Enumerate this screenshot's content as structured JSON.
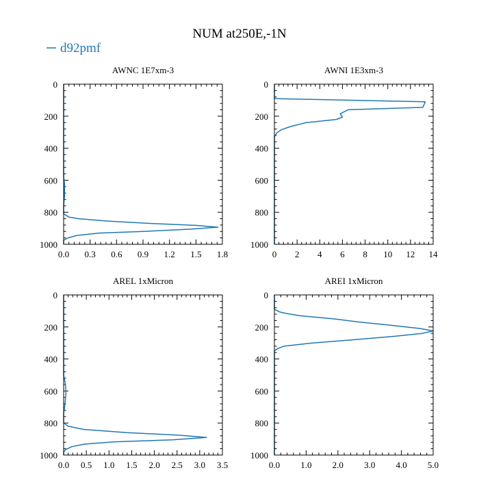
{
  "figure": {
    "title": "NUM at250E,-1N",
    "legend_label": "d92pmf",
    "line_color": "#1f77b4"
  },
  "chart_data": [
    {
      "type": "line",
      "title": "AWNC  1E7xm-3",
      "ylim": [
        1000,
        0
      ],
      "xlim": [
        0,
        1.8
      ],
      "yticks": [
        0,
        200,
        400,
        600,
        800,
        1000
      ],
      "xticks": [
        0.0,
        0.3,
        0.6,
        0.9,
        1.2,
        1.5,
        1.8
      ],
      "xtick_labels": [
        "0.0",
        "0.3",
        "0.6",
        "0.9",
        "1.2",
        "1.5",
        "1.8"
      ],
      "series": [
        {
          "name": "d92pmf",
          "x": [
            0,
            0,
            0.01,
            0.01,
            0,
            0,
            0.06,
            0.17,
            0.5,
            1.0,
            1.5,
            1.75,
            1.45,
            0.9,
            0.4,
            0.15,
            0.05,
            0,
            0
          ],
          "y": [
            0,
            580,
            620,
            700,
            760,
            810,
            830,
            840,
            855,
            870,
            882,
            893,
            905,
            920,
            930,
            945,
            960,
            975,
            1000
          ]
        }
      ]
    },
    {
      "type": "line",
      "title": "AWNI  1E3xm-3",
      "ylim": [
        1000,
        0
      ],
      "xlim": [
        0,
        14
      ],
      "yticks": [
        0,
        200,
        400,
        600,
        800,
        1000
      ],
      "xticks": [
        0,
        2,
        4,
        6,
        8,
        10,
        12,
        14
      ],
      "xtick_labels": [
        "0",
        "2",
        "4",
        "6",
        "8",
        "10",
        "12",
        "14"
      ],
      "series": [
        {
          "name": "d92pmf",
          "x": [
            0,
            0,
            13.3,
            13.1,
            6.5,
            5.8,
            6.0,
            5.5,
            2.8,
            1.4,
            0.6,
            0.2,
            0,
            0
          ],
          "y": [
            0,
            90,
            110,
            145,
            160,
            185,
            205,
            220,
            240,
            265,
            285,
            305,
            330,
            1000
          ]
        }
      ]
    },
    {
      "type": "line",
      "title": "AREL  1xMicron",
      "ylim": [
        1000,
        0
      ],
      "xlim": [
        0,
        3.5
      ],
      "yticks": [
        0,
        200,
        400,
        600,
        800,
        1000
      ],
      "xticks": [
        0.0,
        0.5,
        1.0,
        1.5,
        2.0,
        2.5,
        3.0,
        3.5
      ],
      "xtick_labels": [
        "0.0",
        "0.5",
        "1.0",
        "1.5",
        "2.0",
        "2.5",
        "3.0",
        "3.5"
      ],
      "series": [
        {
          "name": "d92pmf",
          "x": [
            0,
            0,
            0.04,
            0.05,
            0.03,
            0,
            0,
            0.1,
            0.45,
            1.4,
            2.5,
            3.15,
            2.4,
            1.1,
            0.45,
            0.18,
            0.05,
            0,
            0
          ],
          "y": [
            0,
            500,
            560,
            620,
            680,
            740,
            800,
            820,
            840,
            860,
            875,
            890,
            905,
            918,
            932,
            948,
            965,
            980,
            1000
          ]
        }
      ]
    },
    {
      "type": "line",
      "title": "AREI  1xMicron",
      "ylim": [
        1000,
        0
      ],
      "xlim": [
        0,
        5.0
      ],
      "yticks": [
        0,
        200,
        400,
        600,
        800,
        1000
      ],
      "xticks": [
        0.0,
        1.0,
        2.0,
        3.0,
        4.0,
        5.0
      ],
      "xtick_labels": [
        "0.0",
        "1.0",
        "2.0",
        "3.0",
        "4.0",
        "5.0"
      ],
      "series": [
        {
          "name": "d92pmf",
          "x": [
            0,
            0,
            0.15,
            0.35,
            0.8,
            1.9,
            2.7,
            3.7,
            4.6,
            5.0,
            4.65,
            3.8,
            2.5,
            1.2,
            0.3,
            0.1,
            0,
            0
          ],
          "y": [
            0,
            90,
            105,
            115,
            130,
            150,
            170,
            190,
            210,
            225,
            240,
            258,
            280,
            300,
            320,
            335,
            350,
            1000
          ]
        }
      ]
    }
  ]
}
